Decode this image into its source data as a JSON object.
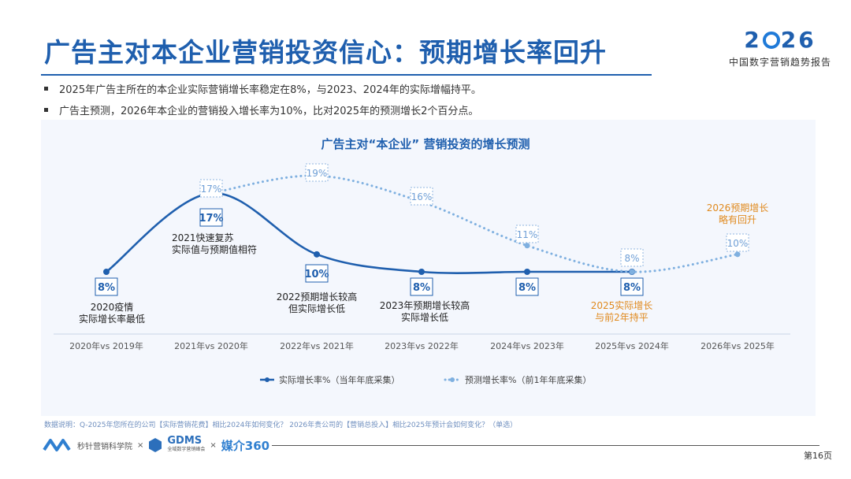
{
  "title": "广告主对本企业营销投资信心：预期增长率回升",
  "brand": {
    "year_a": "2",
    "year_b": "26",
    "subtitle": "中国数字营销趋势报告"
  },
  "bullets": [
    "2025年广告主所在的本企业实际营销增长率稳定在8%，与2023、2024年的实际增幅持平。",
    "广告主预测，2026年本企业的营销投入增长率为10%，比对2025年的预测增长2个百分点。"
  ],
  "chart_data": {
    "type": "line",
    "title": "广告主对“本企业” 营销投资的增长预测",
    "categories": [
      "2020年vs 2019年",
      "2021年vs 2020年",
      "2022年vs 2021年",
      "2023年vs 2022年",
      "2024年vs 2023年",
      "2025年vs 2024年",
      "2026年vs 2025年"
    ],
    "series": [
      {
        "name": "实际增长率%（当年年底采集）",
        "style": "solid",
        "color": "#1f5fae",
        "values": [
          8,
          17,
          10,
          8,
          8,
          8,
          null
        ],
        "labels": [
          "8%",
          "17%",
          "10%",
          "8%",
          "8%",
          "8%",
          ""
        ]
      },
      {
        "name": "预测增长率%（前1年年底采集）",
        "style": "dotted",
        "color": "#7fb0e0",
        "values": [
          null,
          17,
          19,
          16,
          11,
          8,
          10
        ],
        "labels": [
          "",
          "17%",
          "19%",
          "16%",
          "11%",
          "8%",
          "10%"
        ]
      }
    ],
    "annotations": [
      {
        "text": "2020疫情\n实际增长率最低",
        "color": "#222"
      },
      {
        "text": "2021快速复苏\n实际值与预期值相符",
        "color": "#222"
      },
      {
        "text": "2022预期增长较高\n但实际增长低",
        "color": "#222"
      },
      {
        "text": "2023年预期增长较高\n实际增长低",
        "color": "#222"
      },
      {
        "text": "2025实际增长\n与前2年持平",
        "color": "#e08a1e"
      },
      {
        "text": "2026预期增长\n略有回升",
        "color": "#e08a1e"
      }
    ],
    "legend_position": "bottom",
    "grid": false
  },
  "note": "数据说明：Q-2025年您所在的公司【实际营销花费】相比2024年如何变化？    2026年贵公司的【营销总投入】相比2025年预计会如何变化？（单选）",
  "footer": {
    "logo1": "秒针营销科学院",
    "x1": "×",
    "logo2": "GDMS",
    "logo2_sub": "全域数字营销峰会",
    "x2": "×",
    "logo3": "媒介360"
  },
  "page_number": "第16页"
}
